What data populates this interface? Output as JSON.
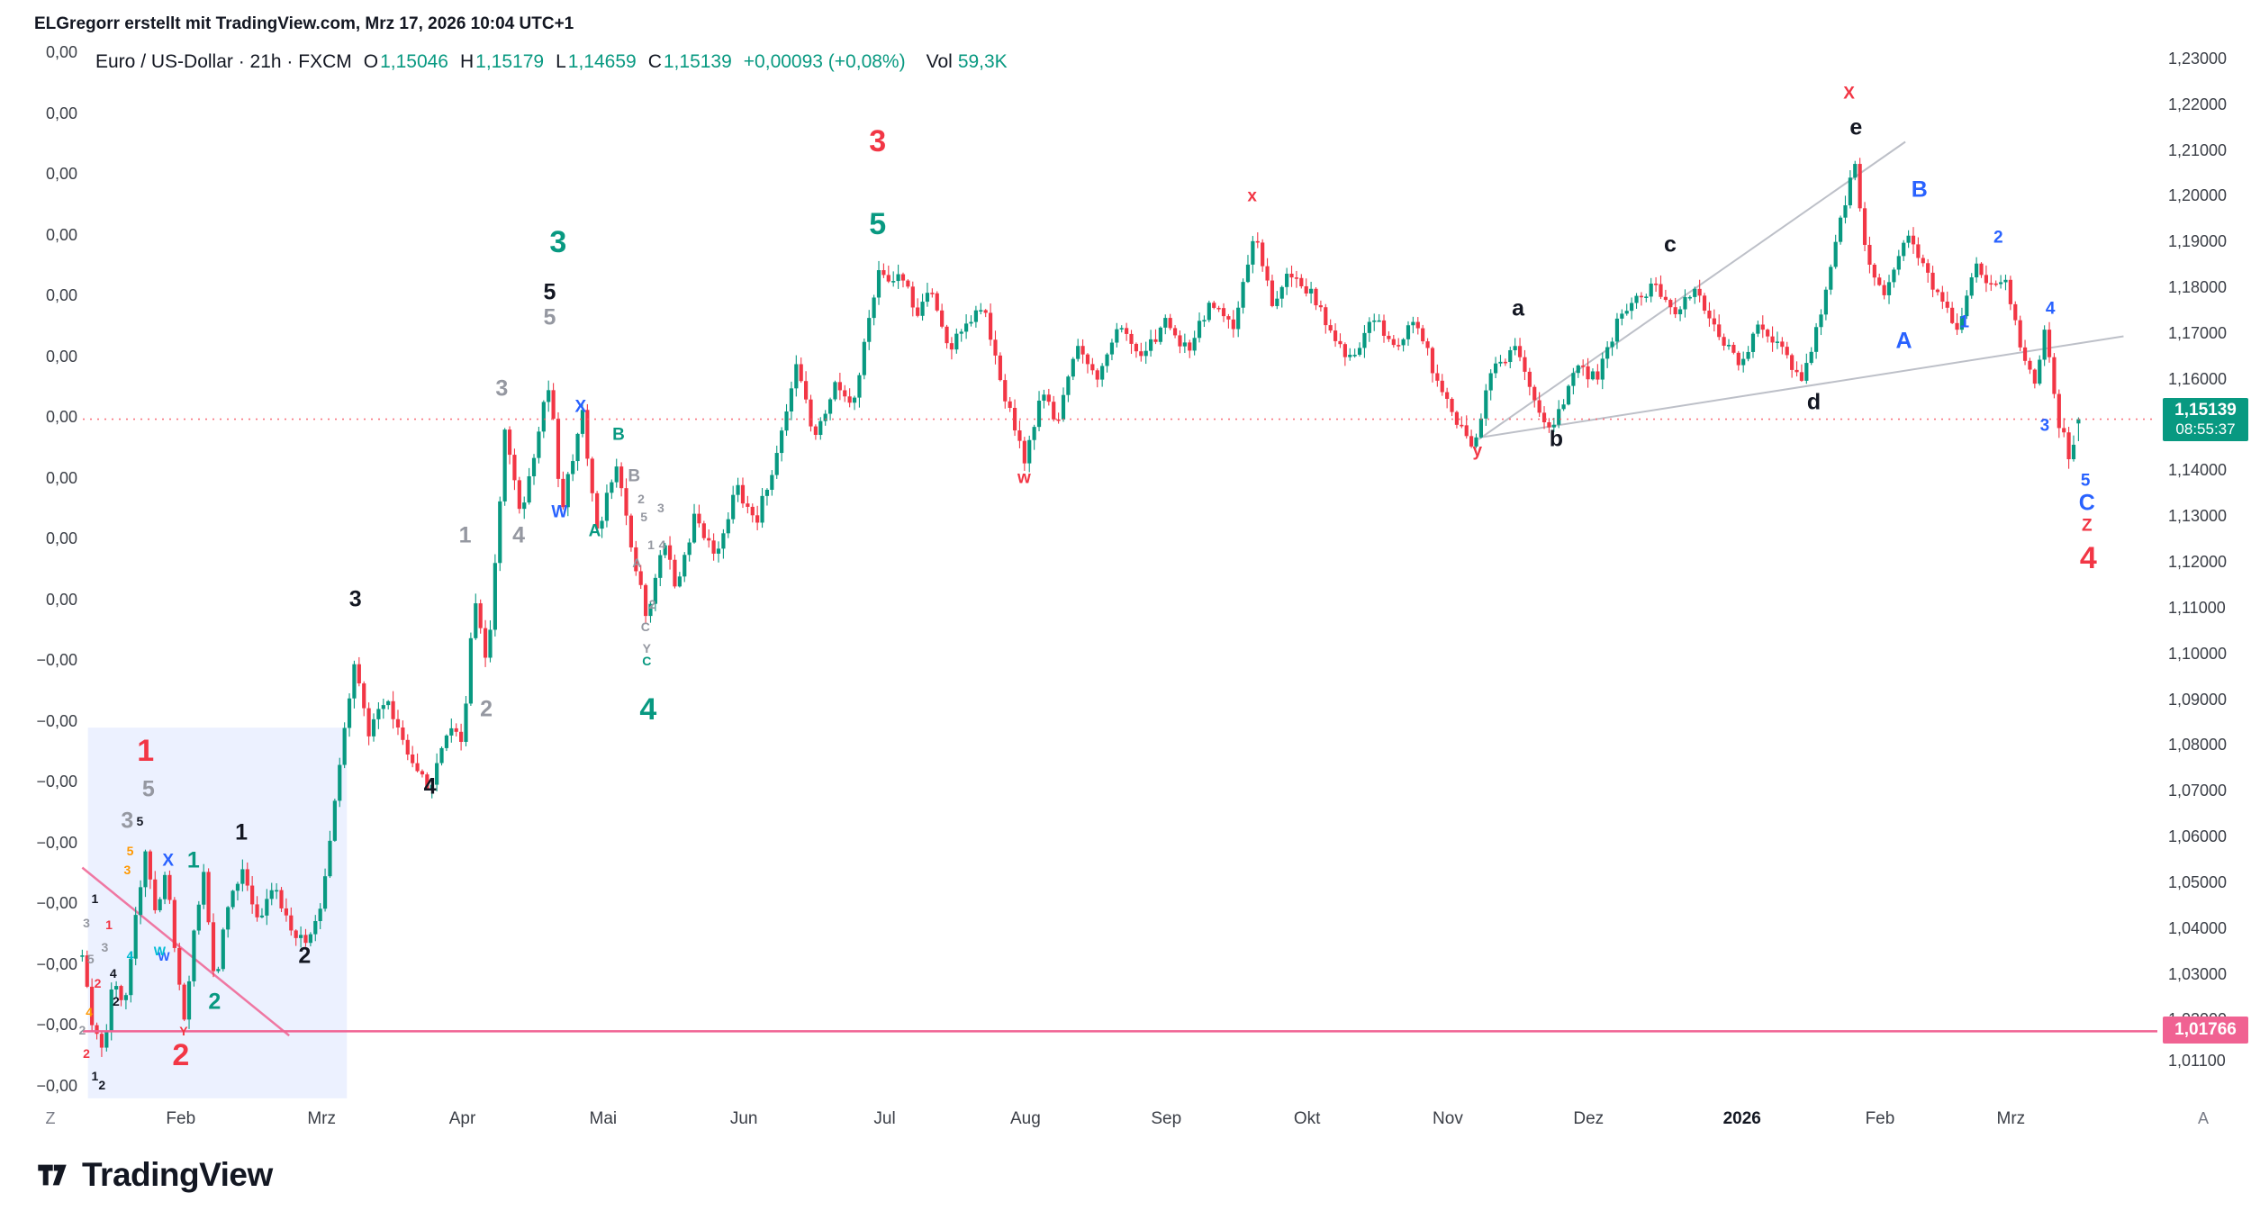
{
  "attribution": "ELGregorr erstellt mit TradingView.com, Mrz 17, 2026 10:04 UTC+1",
  "axis_corners": {
    "left": "Z",
    "right": "A"
  },
  "footer": {
    "logo_text": "TradingView"
  },
  "chart_data": {
    "type": "candlestick",
    "symbol": "Euro / US-Dollar",
    "interval": "21h",
    "exchange": "FXCM",
    "title": "Euro / US-Dollar · 21h · FXCM",
    "ohlc": [
      {
        "k": "O",
        "v": "1,15046"
      },
      {
        "k": "H",
        "v": "1,15179"
      },
      {
        "k": "L",
        "v": "1,14659"
      },
      {
        "k": "C",
        "v": "1,15139"
      }
    ],
    "current_ohlc": [
      1.15046,
      1.15179,
      1.14659,
      1.15139
    ],
    "change_text": "+0,00093 (+0,08%)",
    "volume_label": "Vol",
    "volume_value": "59,3K",
    "last_price_label": "1,15139",
    "last_price_value": 1.15139,
    "countdown": "08:55:37",
    "bar_count": 412,
    "m_range": [
      -0.7,
      13.48
    ],
    "right_axis_ticks": [
      [
        "1,23000",
        1.23
      ],
      [
        "1,22000",
        1.22
      ],
      [
        "1,21000",
        1.21
      ],
      [
        "1,20000",
        1.2
      ],
      [
        "1,19000",
        1.19
      ],
      [
        "1,18000",
        1.18
      ],
      [
        "1,17000",
        1.17
      ],
      [
        "1,16000",
        1.16
      ],
      [
        "1,15000",
        1.15
      ],
      [
        "1,14000",
        1.14
      ],
      [
        "1,13000",
        1.13
      ],
      [
        "1,12000",
        1.12
      ],
      [
        "1,11000",
        1.11
      ],
      [
        "1,10000",
        1.1
      ],
      [
        "1,09000",
        1.09
      ],
      [
        "1,08000",
        1.08
      ],
      [
        "1,07000",
        1.07
      ],
      [
        "1,06000",
        1.06
      ],
      [
        "1,05000",
        1.05
      ],
      [
        "1,04000",
        1.04
      ],
      [
        "1,03000",
        1.03
      ],
      [
        "1,02000",
        1.02
      ],
      [
        "1,01100",
        1.011
      ]
    ],
    "left_axis_labels": [
      "0,00",
      "0,00",
      "0,00",
      "0,00",
      "0,00",
      "0,00",
      "0,00",
      "0,00",
      "0,00",
      "0,00",
      "−0,00",
      "−0,00",
      "−0,00",
      "−0,00",
      "−0,00",
      "−0,00",
      "−0,00",
      "−0,00"
    ],
    "time_axis": [
      [
        "Feb",
        0,
        0
      ],
      [
        "Mrz",
        1,
        0
      ],
      [
        "Apr",
        2,
        0
      ],
      [
        "Mai",
        3,
        0
      ],
      [
        "Jun",
        4,
        0
      ],
      [
        "Jul",
        5,
        0
      ],
      [
        "Aug",
        6,
        0
      ],
      [
        "Sep",
        7,
        0
      ],
      [
        "Okt",
        8,
        0
      ],
      [
        "Nov",
        9,
        0
      ],
      [
        "Dez",
        10,
        0
      ],
      [
        "2026",
        11.09,
        1
      ],
      [
        "Feb",
        12.07,
        0
      ],
      [
        "Mrz",
        13,
        0
      ]
    ],
    "price_path_keyframes": [
      [
        -0.7,
        1.034
      ],
      [
        -0.63,
        1.019
      ],
      [
        -0.55,
        1.013
      ],
      [
        -0.48,
        1.031
      ],
      [
        -0.4,
        1.022
      ],
      [
        -0.33,
        1.04
      ],
      [
        -0.25,
        1.058
      ],
      [
        -0.18,
        1.044
      ],
      [
        -0.1,
        1.052
      ],
      [
        -0.02,
        1.03
      ],
      [
        0.03,
        1.0177
      ],
      [
        0.1,
        1.042
      ],
      [
        0.16,
        1.052
      ],
      [
        0.24,
        1.028
      ],
      [
        0.33,
        1.044
      ],
      [
        0.44,
        1.053
      ],
      [
        0.55,
        1.041
      ],
      [
        0.66,
        1.049
      ],
      [
        0.78,
        1.039
      ],
      [
        0.89,
        1.0365
      ],
      [
        1.0,
        1.046
      ],
      [
        1.1,
        1.07
      ],
      [
        1.23,
        1.098
      ],
      [
        1.34,
        1.082
      ],
      [
        1.46,
        1.092
      ],
      [
        1.6,
        1.078
      ],
      [
        1.76,
        1.0705
      ],
      [
        1.9,
        1.084
      ],
      [
        2.0,
        1.08
      ],
      [
        2.08,
        1.113
      ],
      [
        2.18,
        1.097
      ],
      [
        2.3,
        1.148
      ],
      [
        2.42,
        1.131
      ],
      [
        2.55,
        1.15
      ],
      [
        2.62,
        1.16
      ],
      [
        2.7,
        1.131
      ],
      [
        2.85,
        1.153
      ],
      [
        2.96,
        1.127
      ],
      [
        3.1,
        1.142
      ],
      [
        3.22,
        1.12
      ],
      [
        3.32,
        1.107
      ],
      [
        3.42,
        1.125
      ],
      [
        3.52,
        1.115
      ],
      [
        3.65,
        1.13
      ],
      [
        3.8,
        1.122
      ],
      [
        3.95,
        1.136
      ],
      [
        4.1,
        1.13
      ],
      [
        4.25,
        1.146
      ],
      [
        4.38,
        1.165
      ],
      [
        4.5,
        1.147
      ],
      [
        4.65,
        1.16
      ],
      [
        4.78,
        1.155
      ],
      [
        4.95,
        1.183
      ],
      [
        5.05,
        1.18
      ],
      [
        5.12,
        1.184
      ],
      [
        5.22,
        1.174
      ],
      [
        5.32,
        1.18
      ],
      [
        5.45,
        1.166
      ],
      [
        5.58,
        1.172
      ],
      [
        5.7,
        1.177
      ],
      [
        5.82,
        1.16
      ],
      [
        5.99,
        1.142
      ],
      [
        6.12,
        1.158
      ],
      [
        6.22,
        1.15
      ],
      [
        6.38,
        1.168
      ],
      [
        6.52,
        1.16
      ],
      [
        6.68,
        1.172
      ],
      [
        6.82,
        1.165
      ],
      [
        7.0,
        1.173
      ],
      [
        7.15,
        1.166
      ],
      [
        7.32,
        1.178
      ],
      [
        7.48,
        1.17
      ],
      [
        7.62,
        1.192
      ],
      [
        7.75,
        1.177
      ],
      [
        7.88,
        1.184
      ],
      [
        8.02,
        1.179
      ],
      [
        8.18,
        1.17
      ],
      [
        8.32,
        1.164
      ],
      [
        8.48,
        1.174
      ],
      [
        8.62,
        1.167
      ],
      [
        8.78,
        1.173
      ],
      [
        8.92,
        1.16
      ],
      [
        9.08,
        1.15
      ],
      [
        9.18,
        1.146
      ],
      [
        9.32,
        1.162
      ],
      [
        9.48,
        1.167
      ],
      [
        9.62,
        1.154
      ],
      [
        9.74,
        1.149
      ],
      [
        9.92,
        1.163
      ],
      [
        10.05,
        1.16
      ],
      [
        10.2,
        1.172
      ],
      [
        10.45,
        1.181
      ],
      [
        10.6,
        1.175
      ],
      [
        10.76,
        1.18
      ],
      [
        10.92,
        1.169
      ],
      [
        11.08,
        1.164
      ],
      [
        11.22,
        1.172
      ],
      [
        11.38,
        1.167
      ],
      [
        11.52,
        1.159
      ],
      [
        11.66,
        1.176
      ],
      [
        11.8,
        1.196
      ],
      [
        11.89,
        1.208
      ],
      [
        11.98,
        1.186
      ],
      [
        12.1,
        1.179
      ],
      [
        12.26,
        1.192
      ],
      [
        12.38,
        1.184
      ],
      [
        12.52,
        1.177
      ],
      [
        12.62,
        1.17
      ],
      [
        12.74,
        1.185
      ],
      [
        12.84,
        1.179
      ],
      [
        12.95,
        1.183
      ],
      [
        13.06,
        1.169
      ],
      [
        13.16,
        1.159
      ],
      [
        13.24,
        1.17
      ],
      [
        13.34,
        1.151
      ],
      [
        13.42,
        1.1425
      ],
      [
        13.48,
        1.15139
      ]
    ],
    "annotations": [
      [
        4.95,
        1.212,
        "3",
        "red",
        "xl"
      ],
      [
        4.95,
        1.194,
        "5",
        "green",
        "xl"
      ],
      [
        2.68,
        1.19,
        "3",
        "green",
        "xl"
      ],
      [
        2.62,
        1.179,
        "5",
        "black",
        "md"
      ],
      [
        2.62,
        1.1735,
        "5",
        "gray",
        "md"
      ],
      [
        2.28,
        1.158,
        "3",
        "gray",
        "md"
      ],
      [
        2.84,
        1.154,
        "X",
        "blue",
        "sm"
      ],
      [
        3.11,
        1.148,
        "B",
        "green",
        "sm"
      ],
      [
        3.22,
        1.139,
        "B",
        "gray",
        "sm"
      ],
      [
        2.69,
        1.131,
        "W",
        "blue",
        "sm"
      ],
      [
        2.94,
        1.127,
        "A",
        "green",
        "sm"
      ],
      [
        2.02,
        1.126,
        "1",
        "gray",
        "md"
      ],
      [
        2.4,
        1.126,
        "4",
        "gray",
        "md"
      ],
      [
        1.24,
        1.112,
        "3",
        "black",
        "md"
      ],
      [
        2.17,
        1.088,
        "2",
        "gray",
        "md"
      ],
      [
        3.32,
        1.088,
        "4",
        "green",
        "xl"
      ],
      [
        1.77,
        1.071,
        "4",
        "black",
        "md"
      ],
      [
        7.61,
        1.2,
        "x",
        "red",
        "sm"
      ],
      [
        11.85,
        1.2225,
        "X",
        "red",
        "sm"
      ],
      [
        11.9,
        1.215,
        "e",
        "black",
        "md"
      ],
      [
        12.35,
        1.2015,
        "B",
        "blue",
        "md"
      ],
      [
        10.58,
        1.1895,
        "c",
        "black",
        "md"
      ],
      [
        12.91,
        1.191,
        "2",
        "blue",
        "sm"
      ],
      [
        12.67,
        1.1725,
        "1",
        "blue",
        "sm"
      ],
      [
        13.28,
        1.1755,
        "4",
        "blue",
        "sm"
      ],
      [
        9.5,
        1.1755,
        "a",
        "black",
        "md"
      ],
      [
        12.24,
        1.1685,
        "A",
        "blue",
        "md"
      ],
      [
        11.6,
        1.155,
        "d",
        "black",
        "md"
      ],
      [
        13.24,
        1.15,
        "3",
        "blue",
        "sm"
      ],
      [
        5.99,
        1.1385,
        "w",
        "red",
        "sm"
      ],
      [
        9.21,
        1.1445,
        "y",
        "red",
        "sm"
      ],
      [
        9.77,
        1.147,
        "b",
        "black",
        "md"
      ],
      [
        13.53,
        1.138,
        "5",
        "blue",
        "sm"
      ],
      [
        13.54,
        1.133,
        "C",
        "blue",
        "md"
      ],
      [
        13.54,
        1.128,
        "Z",
        "red",
        "sm"
      ],
      [
        13.55,
        1.121,
        "4",
        "red",
        "xl"
      ],
      [
        0.43,
        1.061,
        "1",
        "black",
        "md"
      ],
      [
        0.88,
        1.034,
        "2",
        "black",
        "md"
      ],
      [
        -0.25,
        1.079,
        "1",
        "red",
        "xl"
      ],
      [
        -0.23,
        1.0705,
        "5",
        "gray",
        "md"
      ],
      [
        -0.38,
        1.0635,
        "3",
        "gray",
        "md"
      ],
      [
        0.09,
        1.055,
        "1",
        "green",
        "md"
      ],
      [
        -0.09,
        1.055,
        "X",
        "blue",
        "sm"
      ],
      [
        0.24,
        1.024,
        "2",
        "green",
        "md"
      ],
      [
        0.0,
        1.0125,
        "2",
        "red",
        "xl"
      ],
      [
        -0.29,
        1.0635,
        "5",
        "black",
        "xs"
      ],
      [
        -0.36,
        1.0571,
        "5",
        "orange",
        "xs"
      ],
      [
        -0.38,
        1.053,
        "3",
        "orange",
        "xs"
      ],
      [
        -0.61,
        1.0467,
        "1",
        "black",
        "xs"
      ],
      [
        -0.67,
        1.0414,
        "3",
        "gray",
        "xs"
      ],
      [
        -0.51,
        1.041,
        "1",
        "red",
        "xs"
      ],
      [
        -0.12,
        1.034,
        "W",
        "blue",
        "xs"
      ],
      [
        -0.36,
        1.0343,
        "4",
        "cyan",
        "xs"
      ],
      [
        -0.15,
        1.0353,
        "W",
        "cyan",
        "xs"
      ],
      [
        -0.54,
        1.036,
        "3",
        "gray",
        "xs"
      ],
      [
        -0.64,
        1.0334,
        "5",
        "gray",
        "xs"
      ],
      [
        -0.48,
        1.0303,
        "4",
        "black",
        "xs"
      ],
      [
        -0.59,
        1.0281,
        "2",
        "red",
        "xs"
      ],
      [
        -0.46,
        1.0243,
        "2",
        "black",
        "xs"
      ],
      [
        -0.65,
        1.0218,
        "4",
        "orange",
        "xs"
      ],
      [
        -0.7,
        1.018,
        "2",
        "gray",
        "xs"
      ],
      [
        0.02,
        1.0177,
        "Y",
        "red",
        "xs"
      ],
      [
        -0.67,
        1.0129,
        "2",
        "red",
        "xs"
      ],
      [
        -0.61,
        1.0078,
        "1",
        "black",
        "xs"
      ],
      [
        -0.56,
        1.006,
        "2",
        "black",
        "xs"
      ],
      [
        3.27,
        1.134,
        "2",
        "gray",
        "xs"
      ],
      [
        3.41,
        1.132,
        "3",
        "gray",
        "xs"
      ],
      [
        3.29,
        1.13,
        "5",
        "gray",
        "xs"
      ],
      [
        3.34,
        1.124,
        "1",
        "gray",
        "xs"
      ],
      [
        3.42,
        1.124,
        "4",
        "gray",
        "xs"
      ],
      [
        3.24,
        1.12,
        "A",
        "gray",
        "xs"
      ],
      [
        3.35,
        1.111,
        "2",
        "gray",
        "xs"
      ],
      [
        3.3,
        1.106,
        "C",
        "gray",
        "xs"
      ],
      [
        3.31,
        1.1013,
        "Y",
        "gray",
        "xs"
      ],
      [
        3.31,
        1.0985,
        "C",
        "green",
        "xs"
      ]
    ],
    "overlays": {
      "highlight_box": {
        "m1": -0.66,
        "p1": 1.084,
        "m2": 1.18,
        "p2": 1.003,
        "color": "#2962FF",
        "opacity": 0.09
      },
      "trend_lines": [
        {
          "m1": -0.7,
          "p1": 1.0534,
          "m2": 0.77,
          "p2": 1.0167,
          "color": "#F06292",
          "width": 2.5
        },
        {
          "m1": 9.22,
          "p1": 1.147,
          "m2": 12.25,
          "p2": 1.212,
          "color": "#B2B5BE",
          "width": 2
        },
        {
          "m1": 9.25,
          "p1": 1.1475,
          "m2": 13.8,
          "p2": 1.1695,
          "color": "#B2B5BE",
          "width": 2
        }
      ],
      "alert_line": {
        "price": 1.01766,
        "label": "1,01766",
        "color": "#F06292"
      },
      "price_line": {
        "price": 1.15139,
        "color": "#F7525F"
      }
    },
    "colors": {
      "up": "#089981",
      "down": "#F23645",
      "red": "#F23645",
      "green": "#089981",
      "blue": "#2962FF",
      "gray": "#9598A1",
      "black": "#131722",
      "orange": "#FF9800",
      "cyan": "#00BCD4",
      "pink": "#F06292"
    }
  }
}
